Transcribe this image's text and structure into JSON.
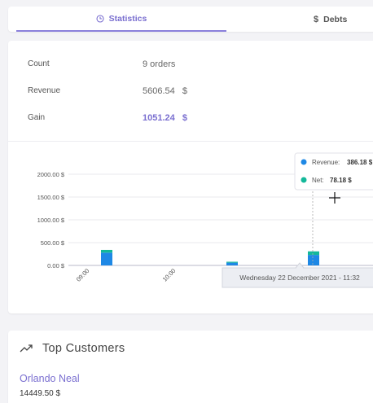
{
  "tabs": [
    {
      "label": "Statistics",
      "icon": "clock-icon",
      "active": true
    },
    {
      "label": "Debts",
      "icon": "dollar-icon",
      "active": false
    }
  ],
  "debts_symbol": "$",
  "stats": {
    "count": {
      "label": "Count",
      "value": "9 orders"
    },
    "revenue": {
      "label": "Revenue",
      "value": "5606.54",
      "unit": "$"
    },
    "gain": {
      "label": "Gain",
      "value": "1051.24",
      "unit": "$"
    }
  },
  "chart_data": {
    "type": "bar",
    "stacked": true,
    "y_ticks": [
      "0.00 $",
      "500.00 $",
      "1000.00 $",
      "1500.00 $",
      "2000.00 $"
    ],
    "ylim": [
      0,
      2000
    ],
    "x_ticks": [
      "09:00",
      "10:00"
    ],
    "series": [
      {
        "name": "Revenue",
        "color": "#1e88e5",
        "values": [
          280,
          60,
          230
        ]
      },
      {
        "name": "Net",
        "color": "#13b89a",
        "values": [
          60,
          20,
          78.18
        ]
      }
    ],
    "tooltip": {
      "items": [
        {
          "label": "Revenue:",
          "value": "386.18 $",
          "color": "#1e88e5"
        },
        {
          "label": "Net:",
          "value": "78.18 $",
          "color": "#13b89a"
        }
      ],
      "date": "Wednesday 22 December 2021 - 11:32"
    }
  },
  "customers": {
    "title": "Top Customers",
    "icon": "trending-up-icon",
    "items": [
      {
        "name": "Orlando Neal",
        "amount": "14449.50 $"
      }
    ]
  }
}
